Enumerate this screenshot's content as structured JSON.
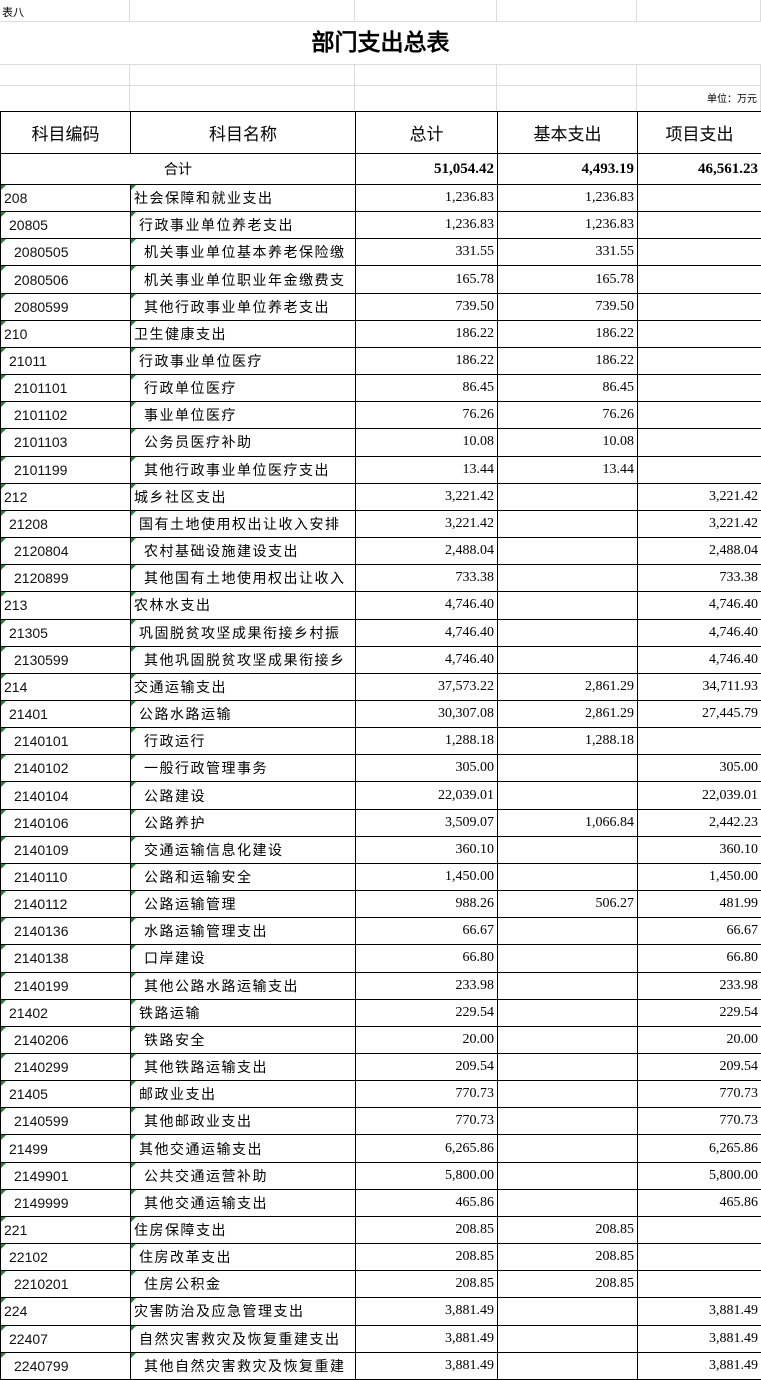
{
  "sheet_label": "表八",
  "title": "部门支出总表",
  "unit": "单位：万元",
  "headers": [
    "科目编码",
    "科目名称",
    "总计",
    "基本支出",
    "项目支出"
  ],
  "total": {
    "label": "合计",
    "total": "51,054.42",
    "basic": "4,493.19",
    "project": "46,561.23"
  },
  "rows": [
    [
      "208",
      "社会保障和就业支出",
      "1,236.83",
      "1,236.83",
      ""
    ],
    [
      "20805",
      "行政事业单位养老支出",
      "1,236.83",
      "1,236.83",
      ""
    ],
    [
      "2080505",
      "机关事业单位基本养老保险缴",
      "331.55",
      "331.55",
      ""
    ],
    [
      "2080506",
      "机关事业单位职业年金缴费支",
      "165.78",
      "165.78",
      ""
    ],
    [
      "2080599",
      "其他行政事业单位养老支出",
      "739.50",
      "739.50",
      ""
    ],
    [
      "210",
      "卫生健康支出",
      "186.22",
      "186.22",
      ""
    ],
    [
      "21011",
      "行政事业单位医疗",
      "186.22",
      "186.22",
      ""
    ],
    [
      "2101101",
      "行政单位医疗",
      "86.45",
      "86.45",
      ""
    ],
    [
      "2101102",
      "事业单位医疗",
      "76.26",
      "76.26",
      ""
    ],
    [
      "2101103",
      "公务员医疗补助",
      "10.08",
      "10.08",
      ""
    ],
    [
      "2101199",
      "其他行政事业单位医疗支出",
      "13.44",
      "13.44",
      ""
    ],
    [
      "212",
      "城乡社区支出",
      "3,221.42",
      "",
      "3,221.42"
    ],
    [
      "21208",
      "国有土地使用权出让收入安排",
      "3,221.42",
      "",
      "3,221.42"
    ],
    [
      "2120804",
      "农村基础设施建设支出",
      "2,488.04",
      "",
      "2,488.04"
    ],
    [
      "2120899",
      "其他国有土地使用权出让收入",
      "733.38",
      "",
      "733.38"
    ],
    [
      "213",
      "农林水支出",
      "4,746.40",
      "",
      "4,746.40"
    ],
    [
      "21305",
      "巩固脱贫攻坚成果衔接乡村振",
      "4,746.40",
      "",
      "4,746.40"
    ],
    [
      "2130599",
      "其他巩固脱贫攻坚成果衔接乡",
      "4,746.40",
      "",
      "4,746.40"
    ],
    [
      "214",
      "交通运输支出",
      "37,573.22",
      "2,861.29",
      "34,711.93"
    ],
    [
      "21401",
      "公路水路运输",
      "30,307.08",
      "2,861.29",
      "27,445.79"
    ],
    [
      "2140101",
      "行政运行",
      "1,288.18",
      "1,288.18",
      ""
    ],
    [
      "2140102",
      "一般行政管理事务",
      "305.00",
      "",
      "305.00"
    ],
    [
      "2140104",
      "公路建设",
      "22,039.01",
      "",
      "22,039.01"
    ],
    [
      "2140106",
      "公路养护",
      "3,509.07",
      "1,066.84",
      "2,442.23"
    ],
    [
      "2140109",
      "交通运输信息化建设",
      "360.10",
      "",
      "360.10"
    ],
    [
      "2140110",
      "公路和运输安全",
      "1,450.00",
      "",
      "1,450.00"
    ],
    [
      "2140112",
      "公路运输管理",
      "988.26",
      "506.27",
      "481.99"
    ],
    [
      "2140136",
      "水路运输管理支出",
      "66.67",
      "",
      "66.67"
    ],
    [
      "2140138",
      "口岸建设",
      "66.80",
      "",
      "66.80"
    ],
    [
      "2140199",
      "其他公路水路运输支出",
      "233.98",
      "",
      "233.98"
    ],
    [
      "21402",
      "铁路运输",
      "229.54",
      "",
      "229.54"
    ],
    [
      "2140206",
      "铁路安全",
      "20.00",
      "",
      "20.00"
    ],
    [
      "2140299",
      "其他铁路运输支出",
      "209.54",
      "",
      "209.54"
    ],
    [
      "21405",
      "邮政业支出",
      "770.73",
      "",
      "770.73"
    ],
    [
      "2140599",
      "其他邮政业支出",
      "770.73",
      "",
      "770.73"
    ],
    [
      "21499",
      "其他交通运输支出",
      "6,265.86",
      "",
      "6,265.86"
    ],
    [
      "2149901",
      "公共交通运营补助",
      "5,800.00",
      "",
      "5,800.00"
    ],
    [
      "2149999",
      "其他交通运输支出",
      "465.86",
      "",
      "465.86"
    ],
    [
      "221",
      "住房保障支出",
      "208.85",
      "208.85",
      ""
    ],
    [
      "22102",
      "住房改革支出",
      "208.85",
      "208.85",
      ""
    ],
    [
      "2210201",
      "住房公积金",
      "208.85",
      "208.85",
      ""
    ],
    [
      "224",
      "灾害防治及应急管理支出",
      "3,881.49",
      "",
      "3,881.49"
    ],
    [
      "22407",
      "自然灾害救灾及恢复重建支出",
      "3,881.49",
      "",
      "3,881.49"
    ],
    [
      "2240799",
      "其他自然灾害救灾及恢复重建",
      "3,881.49",
      "",
      "3,881.49"
    ]
  ],
  "colors": {
    "grid": "#dcdcdc",
    "border": "#000000",
    "error_marker": "#1a8a2a"
  }
}
